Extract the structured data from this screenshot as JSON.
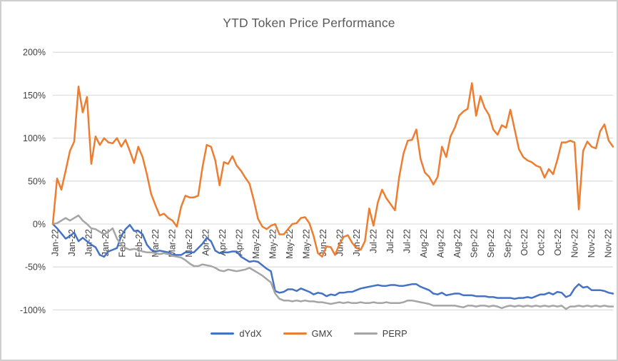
{
  "title": "YTD Token Price Performance",
  "colors": {
    "dydx": "#4472C4",
    "gmx": "#ED7D31",
    "perp": "#A5A5A5",
    "gridline": "#D9D9D9",
    "title_text": "#595959",
    "axis_text": "#404040"
  },
  "chart_data": {
    "type": "line",
    "title": "YTD Token Price Performance",
    "xlabel": "",
    "ylabel": "",
    "ylim": [
      -100,
      200
    ],
    "grid": "horizontal",
    "legend_position": "bottom",
    "y_tick_values": [
      200,
      150,
      100,
      50,
      0,
      -50,
      -100
    ],
    "y_tick_labels": [
      "200%",
      "150%",
      "100%",
      "50%",
      "0%",
      "-50%",
      "-100%"
    ],
    "x_tick_labels": [
      "Jan-22",
      "Jan-22",
      "Jan-22",
      "Jan-22",
      "Feb-22",
      "Feb-22",
      "Mar-22",
      "Mar-22",
      "Mar-22",
      "Apr-22",
      "Apr-22",
      "Apr-22",
      "May-22",
      "May-22",
      "May-22",
      "May-22",
      "Jun-22",
      "Jun-22",
      "Jun-22",
      "Jul-22",
      "Jul-22",
      "Jul-22",
      "Aug-22",
      "Aug-22",
      "Aug-22",
      "Sep-22",
      "Sep-22",
      "Sep-22",
      "Oct-22",
      "Oct-22",
      "Oct-22",
      "Nov-22",
      "Nov-22",
      "Nov-22"
    ],
    "x_range_note": "Jan 2022 through Nov 2022, values in percent, evenly spaced samples",
    "series": [
      {
        "name": "dYdX",
        "color": "#4472C4",
        "values": [
          0,
          -5,
          -11,
          -17,
          -14,
          -10,
          -20,
          -16,
          -20,
          -24,
          -27,
          -36,
          -38,
          -32,
          -30,
          -28,
          -14,
          -6,
          -1,
          -8,
          -8,
          -12,
          -24,
          -30,
          -32,
          -31,
          -32,
          -33,
          -36,
          -36,
          -36,
          -33,
          -33,
          -33,
          -28,
          -23,
          -16,
          -20,
          -31,
          -34,
          -33,
          -33,
          -32,
          -32,
          -38,
          -41,
          -44,
          -43,
          -44,
          -48,
          -52,
          -55,
          -78,
          -80,
          -79,
          -76,
          -76,
          -78,
          -75,
          -77,
          -79,
          -82,
          -80,
          -81,
          -84,
          -82,
          -83,
          -80,
          -80,
          -79,
          -79,
          -77,
          -75,
          -74,
          -73,
          -72,
          -71,
          -72,
          -72,
          -71,
          -71,
          -72,
          -72,
          -71,
          -70,
          -70,
          -73,
          -75,
          -77,
          -81,
          -82,
          -80,
          -83,
          -82,
          -81,
          -81,
          -83,
          -83,
          -83,
          -84,
          -84,
          -84,
          -85,
          -85,
          -86,
          -86,
          -86,
          -86,
          -87,
          -86,
          -86,
          -85,
          -86,
          -84,
          -82,
          -82,
          -80,
          -82,
          -79,
          -80,
          -85,
          -83,
          -75,
          -70,
          -74,
          -73,
          -77,
          -77,
          -77,
          -78,
          -80,
          -81
        ]
      },
      {
        "name": "GMX",
        "color": "#ED7D31",
        "values": [
          0,
          53,
          40,
          62,
          85,
          96,
          160,
          130,
          148,
          70,
          102,
          92,
          100,
          95,
          94,
          100,
          90,
          98,
          85,
          71,
          90,
          78,
          58,
          35,
          22,
          10,
          12,
          7,
          4,
          -3,
          20,
          33,
          31,
          31,
          33,
          66,
          92,
          90,
          74,
          45,
          72,
          70,
          79,
          68,
          62,
          54,
          47,
          28,
          6,
          -3,
          -6,
          -2,
          0,
          -12,
          -12,
          -6,
          0,
          1,
          7,
          8,
          1,
          -14,
          -34,
          -38,
          -26,
          -27,
          -36,
          -24,
          -15,
          -13,
          -22,
          -28,
          -30,
          -20,
          18,
          -2,
          25,
          40,
          30,
          23,
          16,
          55,
          82,
          97,
          98,
          110,
          76,
          60,
          55,
          46,
          55,
          90,
          78,
          102,
          112,
          126,
          131,
          134,
          164,
          126,
          149,
          135,
          127,
          110,
          104,
          115,
          112,
          133,
          110,
          87,
          78,
          74,
          72,
          68,
          66,
          54,
          64,
          58,
          75,
          95,
          95,
          97,
          95,
          17,
          85,
          96,
          90,
          88,
          108,
          116,
          97,
          90
        ]
      },
      {
        "name": "PERP",
        "color": "#A5A5A5",
        "values": [
          0,
          1,
          4,
          7,
          4,
          7,
          10,
          4,
          0,
          -5,
          -6,
          -9,
          -12,
          -9,
          -5,
          -17,
          -24,
          -28,
          -30,
          -29,
          -30,
          -32,
          -33,
          -33,
          -34,
          -35,
          -34,
          -35,
          -37,
          -38,
          -39,
          -42,
          -46,
          -49,
          -49,
          -47,
          -48,
          -49,
          -51,
          -54,
          -55,
          -53,
          -54,
          -55,
          -54,
          -53,
          -51,
          -54,
          -57,
          -60,
          -64,
          -68,
          -81,
          -87,
          -89,
          -89,
          -90,
          -89,
          -90,
          -89,
          -90,
          -90,
          -91,
          -91,
          -92,
          -93,
          -92,
          -91,
          -92,
          -91,
          -92,
          -92,
          -91,
          -92,
          -92,
          -91,
          -92,
          -92,
          -91,
          -92,
          -92,
          -92,
          -91,
          -89,
          -89,
          -90,
          -91,
          -92,
          -93,
          -95,
          -95,
          -95,
          -95,
          -95,
          -95,
          -96,
          -97,
          -95,
          -95,
          -96,
          -95,
          -95,
          -96,
          -95,
          -96,
          -98,
          -96,
          -95,
          -96,
          -95,
          -96,
          -95,
          -96,
          -95,
          -96,
          -95,
          -96,
          -95,
          -96,
          -95,
          -99,
          -96,
          -96,
          -95,
          -96,
          -95,
          -96,
          -95,
          -96,
          -95,
          -96,
          -96
        ]
      }
    ],
    "legend": [
      "dYdX",
      "GMX",
      "PERP"
    ]
  }
}
